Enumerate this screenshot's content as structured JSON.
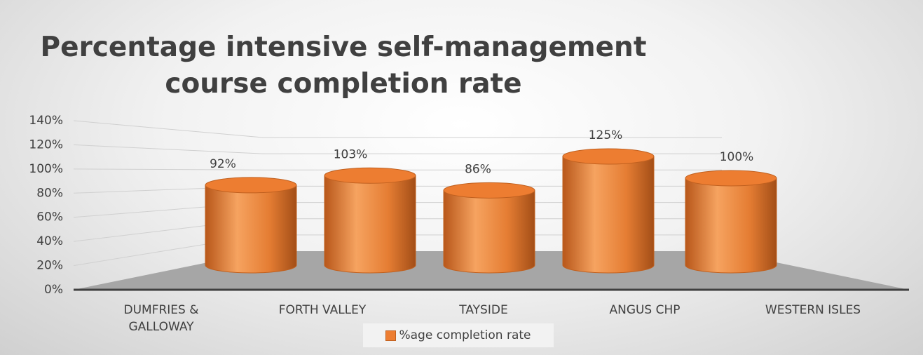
{
  "chart_data": {
    "type": "cylinder",
    "title": "Percentage intensive self-management course completion rate",
    "categories": [
      "DUMFRIES & GALLOWAY",
      "FORTH VALLEY",
      "TAYSIDE",
      "ANGUS CHP",
      "WESTERN ISLES"
    ],
    "series": [
      {
        "name": "%age completion rate",
        "color": "#ed7d31",
        "values": [
          92,
          103,
          86,
          125,
          100
        ],
        "value_labels": [
          "92%",
          "103%",
          "86%",
          "125%",
          "100%"
        ]
      }
    ],
    "ylim": [
      0,
      140
    ],
    "yticks": [
      {
        "value": 0,
        "label": "0%"
      },
      {
        "value": 20,
        "label": "20%"
      },
      {
        "value": 40,
        "label": "40%"
      },
      {
        "value": 60,
        "label": "60%"
      },
      {
        "value": 80,
        "label": "80%"
      },
      {
        "value": 100,
        "label": "100%"
      },
      {
        "value": 120,
        "label": "120%"
      },
      {
        "value": 140,
        "label": "140%"
      }
    ],
    "grid": true,
    "legend": "bottom"
  }
}
